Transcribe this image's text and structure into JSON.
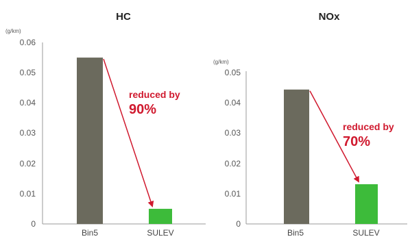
{
  "colors": {
    "bin5": "#6b6a5d",
    "sulev": "#3dbb3a",
    "annotation": "#d0192e",
    "axis": "#9a9a9a"
  },
  "chart_data": [
    {
      "type": "bar",
      "title": "HC",
      "unit": "(g/km)",
      "categories": [
        "Bin5",
        "SULEV"
      ],
      "values": [
        0.055,
        0.005
      ],
      "ylim": [
        0,
        0.06
      ],
      "yticks": [
        "0",
        "0.01",
        "0.02",
        "0.03",
        "0.04",
        "0.05",
        "0.06"
      ],
      "grid": false,
      "annotation": {
        "line1": "reduced by",
        "line2": "90%"
      }
    },
    {
      "type": "bar",
      "title": "NOx",
      "unit": "(g/km)",
      "categories": [
        "Bin5",
        "SULEV"
      ],
      "values": [
        0.044,
        0.013
      ],
      "ylim": [
        0,
        0.05
      ],
      "yticks": [
        "0",
        "0.01",
        "0.02",
        "0.03",
        "0.04",
        "0.05"
      ],
      "grid": false,
      "annotation": {
        "line1": "reduced by",
        "line2": "70%"
      }
    }
  ]
}
